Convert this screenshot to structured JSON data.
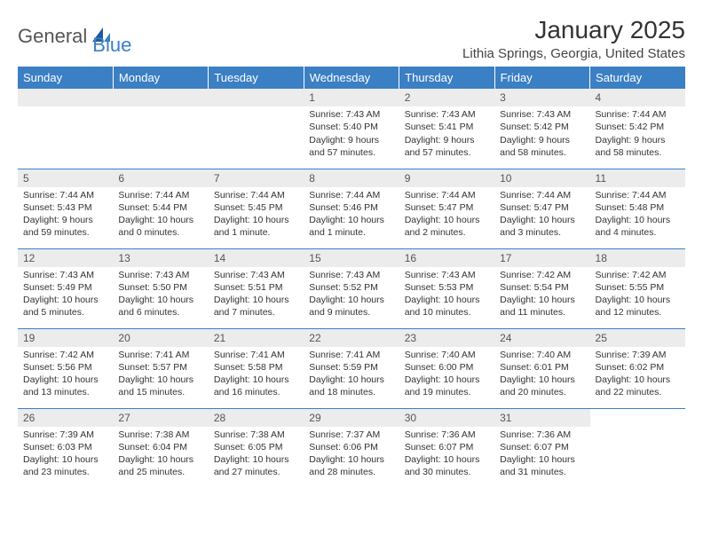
{
  "logo": {
    "general": "General",
    "blue": "Blue"
  },
  "title": "January 2025",
  "location": "Lithia Springs, Georgia, United States",
  "colors": {
    "header_bg": "#3b7fc4",
    "header_text": "#ffffff",
    "daynum_bg": "#ececec",
    "grid_line": "#3b7fc4",
    "text": "#333333"
  },
  "weekdays": [
    "Sunday",
    "Monday",
    "Tuesday",
    "Wednesday",
    "Thursday",
    "Friday",
    "Saturday"
  ],
  "weeks": [
    [
      null,
      null,
      null,
      {
        "n": "1",
        "sr": "7:43 AM",
        "ss": "5:40 PM",
        "dl": "9 hours and 57 minutes."
      },
      {
        "n": "2",
        "sr": "7:43 AM",
        "ss": "5:41 PM",
        "dl": "9 hours and 57 minutes."
      },
      {
        "n": "3",
        "sr": "7:43 AM",
        "ss": "5:42 PM",
        "dl": "9 hours and 58 minutes."
      },
      {
        "n": "4",
        "sr": "7:44 AM",
        "ss": "5:42 PM",
        "dl": "9 hours and 58 minutes."
      }
    ],
    [
      {
        "n": "5",
        "sr": "7:44 AM",
        "ss": "5:43 PM",
        "dl": "9 hours and 59 minutes."
      },
      {
        "n": "6",
        "sr": "7:44 AM",
        "ss": "5:44 PM",
        "dl": "10 hours and 0 minutes."
      },
      {
        "n": "7",
        "sr": "7:44 AM",
        "ss": "5:45 PM",
        "dl": "10 hours and 1 minute."
      },
      {
        "n": "8",
        "sr": "7:44 AM",
        "ss": "5:46 PM",
        "dl": "10 hours and 1 minute."
      },
      {
        "n": "9",
        "sr": "7:44 AM",
        "ss": "5:47 PM",
        "dl": "10 hours and 2 minutes."
      },
      {
        "n": "10",
        "sr": "7:44 AM",
        "ss": "5:47 PM",
        "dl": "10 hours and 3 minutes."
      },
      {
        "n": "11",
        "sr": "7:44 AM",
        "ss": "5:48 PM",
        "dl": "10 hours and 4 minutes."
      }
    ],
    [
      {
        "n": "12",
        "sr": "7:43 AM",
        "ss": "5:49 PM",
        "dl": "10 hours and 5 minutes."
      },
      {
        "n": "13",
        "sr": "7:43 AM",
        "ss": "5:50 PM",
        "dl": "10 hours and 6 minutes."
      },
      {
        "n": "14",
        "sr": "7:43 AM",
        "ss": "5:51 PM",
        "dl": "10 hours and 7 minutes."
      },
      {
        "n": "15",
        "sr": "7:43 AM",
        "ss": "5:52 PM",
        "dl": "10 hours and 9 minutes."
      },
      {
        "n": "16",
        "sr": "7:43 AM",
        "ss": "5:53 PM",
        "dl": "10 hours and 10 minutes."
      },
      {
        "n": "17",
        "sr": "7:42 AM",
        "ss": "5:54 PM",
        "dl": "10 hours and 11 minutes."
      },
      {
        "n": "18",
        "sr": "7:42 AM",
        "ss": "5:55 PM",
        "dl": "10 hours and 12 minutes."
      }
    ],
    [
      {
        "n": "19",
        "sr": "7:42 AM",
        "ss": "5:56 PM",
        "dl": "10 hours and 13 minutes."
      },
      {
        "n": "20",
        "sr": "7:41 AM",
        "ss": "5:57 PM",
        "dl": "10 hours and 15 minutes."
      },
      {
        "n": "21",
        "sr": "7:41 AM",
        "ss": "5:58 PM",
        "dl": "10 hours and 16 minutes."
      },
      {
        "n": "22",
        "sr": "7:41 AM",
        "ss": "5:59 PM",
        "dl": "10 hours and 18 minutes."
      },
      {
        "n": "23",
        "sr": "7:40 AM",
        "ss": "6:00 PM",
        "dl": "10 hours and 19 minutes."
      },
      {
        "n": "24",
        "sr": "7:40 AM",
        "ss": "6:01 PM",
        "dl": "10 hours and 20 minutes."
      },
      {
        "n": "25",
        "sr": "7:39 AM",
        "ss": "6:02 PM",
        "dl": "10 hours and 22 minutes."
      }
    ],
    [
      {
        "n": "26",
        "sr": "7:39 AM",
        "ss": "6:03 PM",
        "dl": "10 hours and 23 minutes."
      },
      {
        "n": "27",
        "sr": "7:38 AM",
        "ss": "6:04 PM",
        "dl": "10 hours and 25 minutes."
      },
      {
        "n": "28",
        "sr": "7:38 AM",
        "ss": "6:05 PM",
        "dl": "10 hours and 27 minutes."
      },
      {
        "n": "29",
        "sr": "7:37 AM",
        "ss": "6:06 PM",
        "dl": "10 hours and 28 minutes."
      },
      {
        "n": "30",
        "sr": "7:36 AM",
        "ss": "6:07 PM",
        "dl": "10 hours and 30 minutes."
      },
      {
        "n": "31",
        "sr": "7:36 AM",
        "ss": "6:07 PM",
        "dl": "10 hours and 31 minutes."
      },
      null
    ]
  ],
  "labels": {
    "sunrise": "Sunrise:",
    "sunset": "Sunset:",
    "daylight": "Daylight:"
  }
}
